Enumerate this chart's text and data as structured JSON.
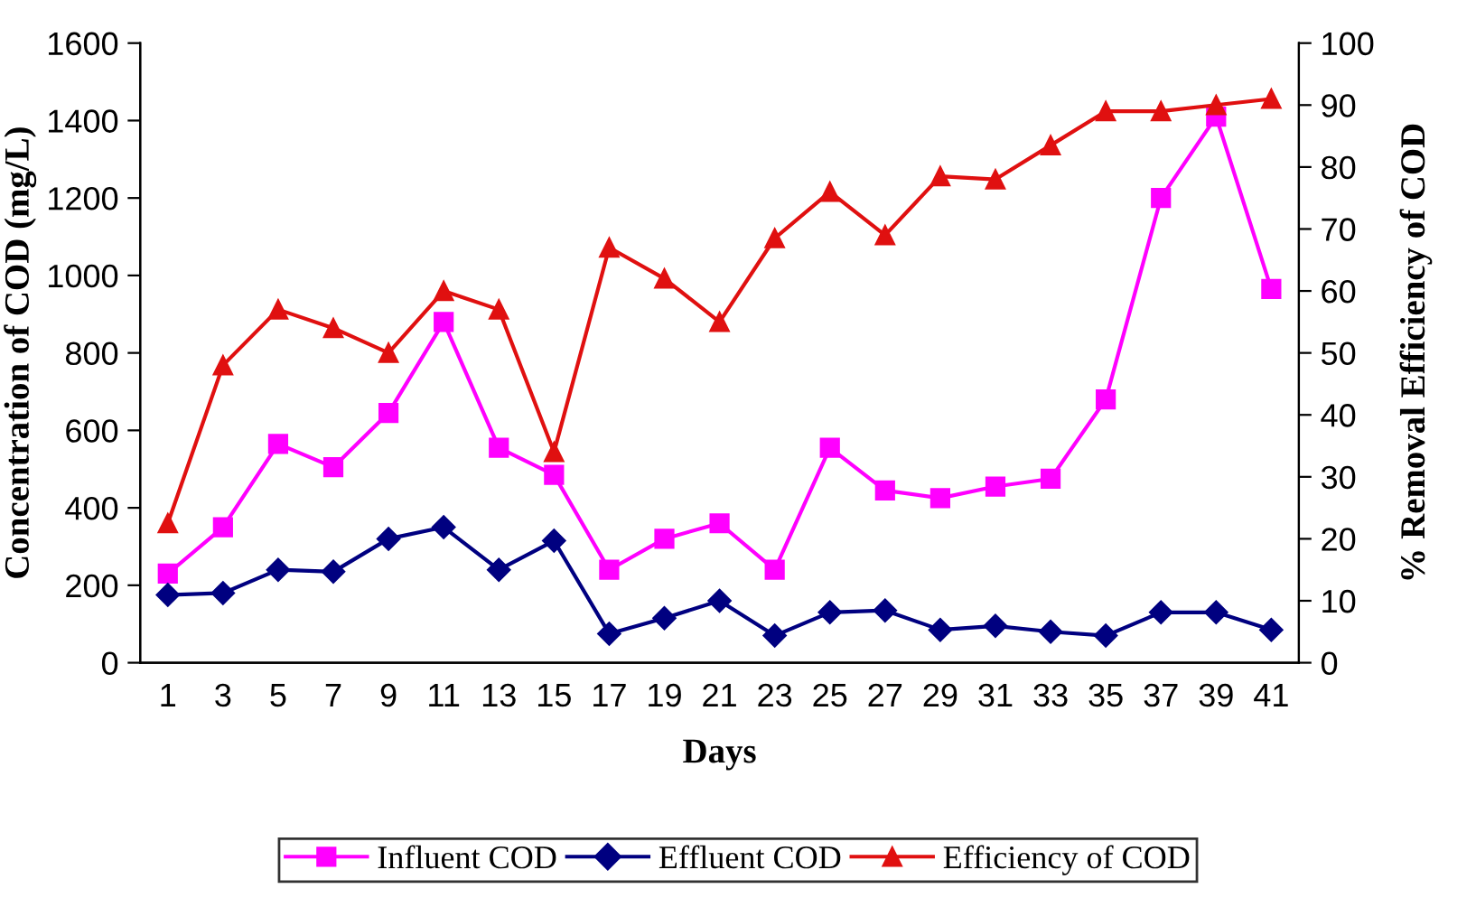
{
  "chart_data": {
    "type": "line",
    "xlabel": "Days",
    "ylabel": "Concentration of COD (mg/L)",
    "y2label": "% Removal Efficiency of COD",
    "categories": [
      "1",
      "3",
      "5",
      "7",
      "9",
      "11",
      "13",
      "15",
      "17",
      "19",
      "21",
      "23",
      "25",
      "27",
      "29",
      "31",
      "33",
      "35",
      "37",
      "39",
      "41"
    ],
    "series": [
      {
        "name": "Influent COD",
        "color": "#ff00ff",
        "marker": "square",
        "values": [
          230,
          350,
          565,
          505,
          645,
          880,
          555,
          485,
          240,
          320,
          360,
          240,
          555,
          445,
          425,
          455,
          475,
          680,
          1200,
          1410,
          965
        ]
      },
      {
        "name": "Effluent COD",
        "color": "#000080",
        "marker": "diamond",
        "values": [
          175,
          180,
          240,
          235,
          320,
          350,
          240,
          315,
          75,
          115,
          160,
          70,
          130,
          135,
          85,
          95,
          80,
          70,
          130,
          130,
          85
        ]
      },
      {
        "name": "Efficiency of COD",
        "color": "#e01010",
        "marker": "triangle",
        "axis": "y2",
        "values": [
          22.5,
          48,
          57,
          54,
          50,
          60,
          57,
          34,
          67,
          62,
          55,
          68.5,
          76,
          69,
          78.5,
          78,
          83.5,
          89,
          89,
          90,
          91
        ]
      }
    ],
    "ylim": [
      0,
      1600
    ],
    "yticks": [
      0,
      200,
      400,
      600,
      800,
      1000,
      1200,
      1400,
      1600
    ],
    "y2lim": [
      0,
      100
    ],
    "y2ticks": [
      0,
      10,
      20,
      30,
      40,
      50,
      60,
      70,
      80,
      90,
      100
    ],
    "grid": false,
    "legend": "bottom",
    "line_style": "solid"
  }
}
